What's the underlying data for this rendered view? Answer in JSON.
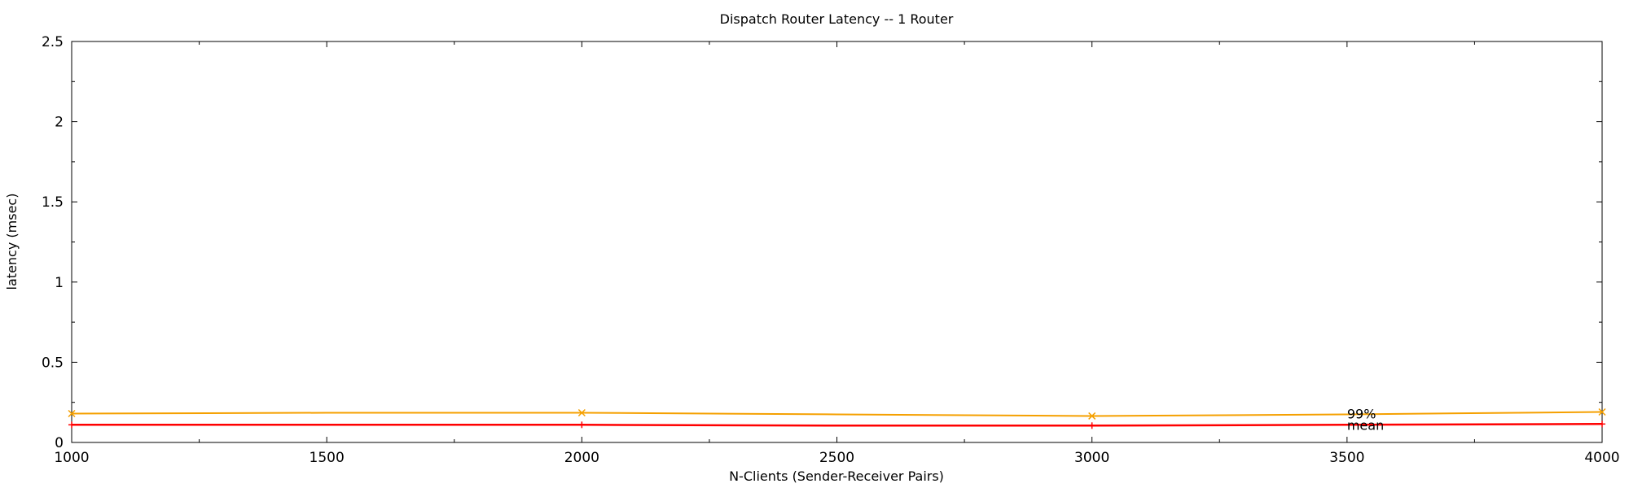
{
  "chart_data": {
    "type": "line",
    "title": "Dispatch Router Latency -- 1 Router",
    "xlabel": "N-Clients  (Sender-Receiver Pairs)",
    "ylabel": "latency (msec)",
    "xlim": [
      1000,
      4000
    ],
    "ylim": [
      0,
      2.5
    ],
    "xticks": [
      "1000",
      "1500",
      "2000",
      "2500",
      "3000",
      "3500",
      "4000"
    ],
    "yticks": [
      "0",
      "0.5",
      "1",
      "1.5",
      "2",
      "2.5"
    ],
    "grid": false,
    "series": [
      {
        "name": "99%",
        "color": "#f5a000",
        "marker": "x",
        "x": [
          1000,
          1500,
          2000,
          2500,
          3000,
          3500,
          4000
        ],
        "y": [
          0.18,
          0.185,
          0.185,
          0.175,
          0.165,
          0.175,
          0.19
        ]
      },
      {
        "name": "mean",
        "color": "#ff0000",
        "marker": "+",
        "x": [
          1000,
          1500,
          2000,
          2500,
          3000,
          3500,
          4000
        ],
        "y": [
          0.11,
          0.11,
          0.11,
          0.105,
          0.105,
          0.11,
          0.115
        ]
      }
    ],
    "annotations": [
      {
        "text": "99%",
        "x": 3500,
        "y": 0.18
      },
      {
        "text": "mean",
        "x": 3500,
        "y": 0.11
      }
    ]
  }
}
